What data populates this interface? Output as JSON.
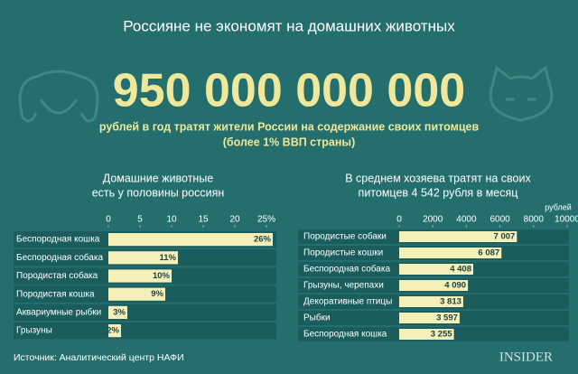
{
  "title": "Россияне не экономят на домашних животных",
  "headline": "950 000 000 000",
  "subtitle": [
    "рублей в год тратят жители России на содержание своих питомцев",
    "(более 1% ВВП страны)"
  ],
  "source": "Источник: Аналитический центр НАФИ",
  "logo": "INSIDER",
  "chart_data": [
    {
      "type": "hbar",
      "title": [
        "Домашние животные",
        "есть у половины россиян"
      ],
      "categories": [
        "Беспородная кошка",
        "Беспородная собака",
        "Породистая собака",
        "Породистая кошка",
        "Аквариумные рыбки",
        "Грызуны"
      ],
      "values": [
        26,
        11,
        10,
        9,
        3,
        2
      ],
      "value_labels": [
        "26%",
        "11%",
        "10%",
        "9%",
        "3%",
        "2%"
      ],
      "color": "#f4f0b9",
      "xlim": [
        0,
        26.5
      ],
      "xticks": [
        0,
        5,
        10,
        15,
        20,
        {
          "value": 25,
          "label": "25%"
        }
      ]
    },
    {
      "type": "hbar",
      "title": [
        "В среднем хозяева тратят на своих",
        "питомцев 4 542 рубля в месяц"
      ],
      "categories": [
        "Породистые собаки",
        "Породистые кошки",
        "Беспородная собака",
        "Грызуны, черепахи",
        "Декоративные птицы",
        "Рыбки",
        "Беспородная кошка"
      ],
      "values": [
        7007,
        6087,
        4408,
        4090,
        3813,
        3597,
        3255
      ],
      "value_labels": [
        "7 007",
        "6 087",
        "4 408",
        "4 090",
        "3 813",
        "3 597",
        "3 255"
      ],
      "color": "#f4f0b9",
      "x_unit": "рублей",
      "xlim": [
        0,
        10000
      ],
      "xticks": [
        0,
        2000,
        4000,
        6000,
        8000,
        10000
      ]
    }
  ]
}
